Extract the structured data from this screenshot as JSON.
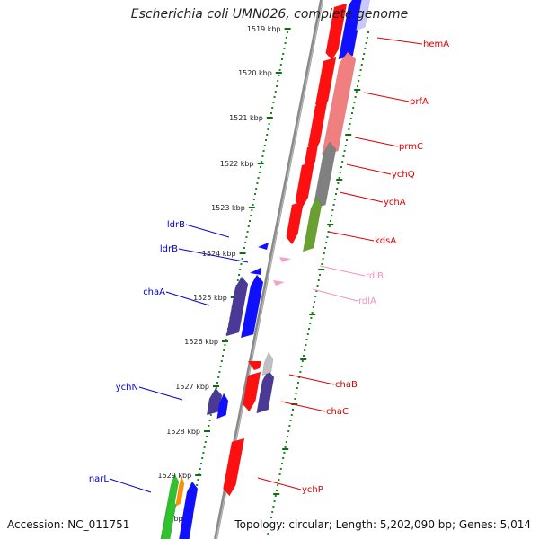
{
  "title": "Escherichia coli UMN026, complete genome",
  "footer": {
    "accession": "Accession: NC_011751",
    "stats": "Topology: circular; Length: 5,202,090 bp; Genes: 5,014"
  },
  "ticks": [
    "1519 kbp",
    "1520 kbp",
    "1521 kbp",
    "1522 kbp",
    "1523 kbp",
    "1524 kbp",
    "1525 kbp",
    "1526 kbp",
    "1527 kbp",
    "1528 kbp",
    "1529 kbp",
    "bp"
  ],
  "colors": {
    "backbone": "#808080",
    "minor_tick": "#1a8a1a",
    "major_tick": "#0f6e0f",
    "right_label": "#dd0000",
    "left_label": "#0000cc",
    "pink_label": "#f08fbf"
  },
  "right_labels": [
    {
      "text": "hemA",
      "color": "#dd0000"
    },
    {
      "text": "prfA",
      "color": "#dd0000"
    },
    {
      "text": "prmC",
      "color": "#dd0000"
    },
    {
      "text": "ychQ",
      "color": "#dd0000"
    },
    {
      "text": "ychA",
      "color": "#dd0000"
    },
    {
      "text": "kdsA",
      "color": "#dd0000"
    },
    {
      "text": "rdlB",
      "color": "#f08fbf"
    },
    {
      "text": "rdlA",
      "color": "#f08fbf"
    },
    {
      "text": "chaB",
      "color": "#dd0000"
    },
    {
      "text": "chaC",
      "color": "#dd0000"
    },
    {
      "text": "ychP",
      "color": "#dd0000"
    }
  ],
  "left_labels": [
    {
      "text": "ldrB",
      "color": "#0000cc"
    },
    {
      "text": "ldrB",
      "color": "#0000cc"
    },
    {
      "text": "chaA",
      "color": "#0000cc"
    },
    {
      "text": "ychN",
      "color": "#0000cc"
    },
    {
      "text": "narL",
      "color": "#0000cc"
    }
  ]
}
